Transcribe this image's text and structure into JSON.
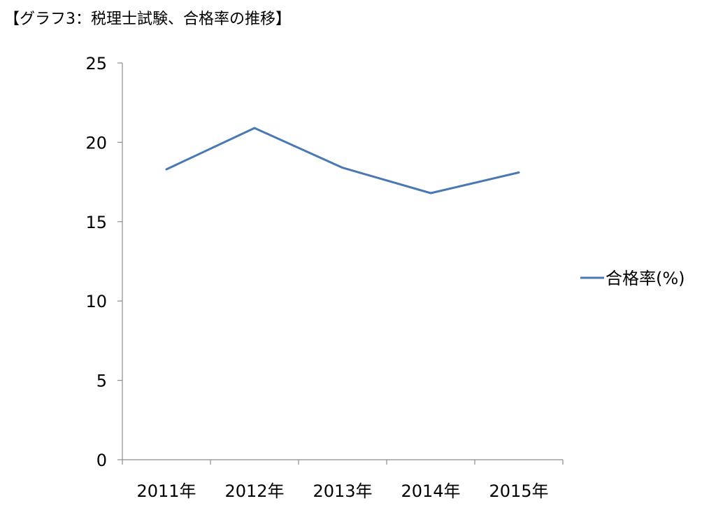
{
  "chart_data": {
    "type": "line",
    "title": "【グラフ3：税理士試験、合格率の推移】",
    "categories": [
      "2011年",
      "2012年",
      "2013年",
      "2014年",
      "2015年"
    ],
    "series": [
      {
        "name": "合格率(%)",
        "values": [
          18.3,
          20.9,
          18.4,
          16.8,
          18.1
        ],
        "color": "#4a78b2"
      }
    ],
    "ylim": [
      0,
      25
    ],
    "yticks": [
      0,
      5,
      10,
      15,
      20,
      25
    ],
    "grid": false,
    "legend_position": "right"
  }
}
